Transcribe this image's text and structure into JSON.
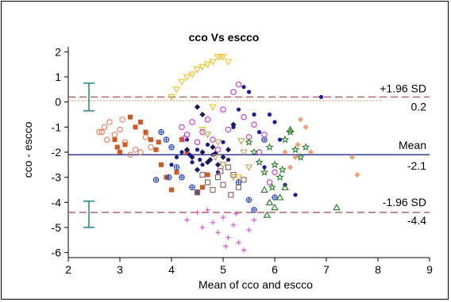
{
  "chart_data": {
    "type": "scatter",
    "title": "cco Vs escco",
    "xlabel": "Mean of cco and escco",
    "ylabel": "cco - escco",
    "xlim": [
      2,
      9
    ],
    "ylim": [
      -6.2,
      2.2
    ],
    "xticks": [
      "2",
      "3",
      "4",
      "5",
      "6",
      "7",
      "8",
      "9"
    ],
    "yticks": [
      "2",
      "1",
      "0",
      "-1",
      "-2",
      "-3",
      "-4",
      "-5",
      "-6"
    ],
    "xtick_values": [
      2,
      3,
      4,
      5,
      6,
      7,
      8,
      9
    ],
    "ytick_values": [
      2,
      1,
      0,
      -1,
      -2,
      -3,
      -4,
      -5,
      -6
    ],
    "grid": false,
    "mean_line": {
      "value": -2.1,
      "label": "Mean",
      "value_label": "-2.1",
      "color": "#1f2a8c"
    },
    "upper_loa": {
      "value": 0.2,
      "label": "+1.96 SD",
      "value_label": "0.2",
      "color": "#a0404a"
    },
    "lower_loa": {
      "value": -4.4,
      "label": "-1.96 SD",
      "value_label": "-4.4",
      "color": "#a0404a"
    },
    "zero_line": {
      "value": 0.05,
      "color": "#e8a060"
    },
    "ci_bars": [
      {
        "x": 2.4,
        "low": -0.35,
        "high": 0.75,
        "color": "#2a8a8a"
      },
      {
        "x": 2.4,
        "low": -5.0,
        "high": -3.95,
        "color": "#2a8a8a"
      }
    ],
    "series": [
      {
        "marker": "circle-open",
        "color": "#f07a55",
        "points": [
          [
            2.6,
            -1.2
          ],
          [
            2.7,
            -1.0
          ],
          [
            2.8,
            -0.8
          ],
          [
            2.75,
            -1.5
          ],
          [
            2.9,
            -1.3
          ],
          [
            3.0,
            -1.1
          ],
          [
            3.1,
            -1.6
          ],
          [
            3.2,
            -2.1
          ],
          [
            3.3,
            -1.9
          ],
          [
            3.5,
            -1.4
          ],
          [
            3.4,
            -2.0
          ],
          [
            3.6,
            -1.8
          ],
          [
            2.65,
            -1.2
          ],
          [
            3.05,
            -0.7
          ]
        ]
      },
      {
        "marker": "square",
        "color": "#d2561e",
        "points": [
          [
            2.9,
            -1.5
          ],
          [
            2.95,
            -1.8
          ],
          [
            3.0,
            -2.0
          ],
          [
            3.1,
            -1.7
          ],
          [
            3.2,
            -0.6
          ],
          [
            3.3,
            -1.0
          ],
          [
            3.4,
            -0.8
          ],
          [
            3.5,
            -1.2
          ],
          [
            3.6,
            -1.5
          ],
          [
            3.7,
            -1.9
          ],
          [
            3.8,
            -2.5
          ],
          [
            3.9,
            -3.0
          ],
          [
            4.0,
            -3.5
          ],
          [
            4.1,
            -2.8
          ],
          [
            4.2,
            -1.5
          ],
          [
            4.3,
            -2.0
          ],
          [
            4.5,
            -3.6
          ],
          [
            4.6,
            -3.4
          ],
          [
            4.7,
            -2.9
          ],
          [
            3.75,
            -1.6
          ]
        ]
      },
      {
        "marker": "triangle-down-open",
        "color": "#f0c020",
        "points": [
          [
            4.0,
            0.2
          ],
          [
            4.1,
            0.5
          ],
          [
            4.2,
            0.8
          ],
          [
            4.3,
            1.0
          ],
          [
            4.4,
            1.1
          ],
          [
            4.5,
            1.3
          ],
          [
            4.6,
            1.4
          ],
          [
            4.7,
            1.5
          ],
          [
            4.8,
            1.6
          ],
          [
            4.9,
            1.8
          ],
          [
            5.0,
            1.8
          ],
          [
            5.1,
            1.6
          ],
          [
            4.8,
            -0.2
          ],
          [
            4.6,
            -1.1
          ],
          [
            5.3,
            -3.0
          ],
          [
            4.95,
            1.8
          ]
        ]
      },
      {
        "marker": "circle-filled",
        "color": "#1a1aa0",
        "points": [
          [
            4.1,
            -2.2
          ],
          [
            4.2,
            -2.0
          ],
          [
            4.3,
            -1.5
          ],
          [
            4.4,
            -2.4
          ],
          [
            4.5,
            -1.9
          ],
          [
            4.6,
            -2.5
          ],
          [
            4.7,
            -1.7
          ],
          [
            4.8,
            -2.1
          ],
          [
            4.9,
            -2.8
          ],
          [
            5.0,
            -1.6
          ],
          [
            5.1,
            -2.3
          ],
          [
            5.2,
            -1.0
          ],
          [
            5.3,
            -0.3
          ],
          [
            5.4,
            0.6
          ],
          [
            5.5,
            0.4
          ],
          [
            5.6,
            -0.5
          ],
          [
            5.7,
            -1.2
          ],
          [
            5.8,
            -2.6
          ],
          [
            5.9,
            -0.5
          ],
          [
            6.0,
            -0.8
          ],
          [
            6.1,
            -1.5
          ],
          [
            6.2,
            -3.3
          ],
          [
            6.4,
            -3.7
          ],
          [
            6.9,
            0.2
          ],
          [
            4.0,
            -2.5
          ],
          [
            4.35,
            -2.1
          ],
          [
            4.55,
            -2.3
          ]
        ]
      },
      {
        "marker": "circle-cross",
        "color": "#2244cc",
        "points": [
          [
            3.8,
            -1.2
          ],
          [
            3.9,
            -1.5
          ],
          [
            4.0,
            -1.8
          ],
          [
            4.1,
            -2.6
          ],
          [
            4.2,
            -3.0
          ],
          [
            3.7,
            -3.1
          ],
          [
            3.95,
            -3.0
          ],
          [
            4.4,
            -3.4
          ],
          [
            4.5,
            -3.6
          ],
          [
            5.6,
            -4.3
          ],
          [
            5.3,
            -3.2
          ],
          [
            6.0,
            -3.8
          ],
          [
            5.8,
            -1.5
          ],
          [
            5.5,
            -3.9
          ]
        ]
      },
      {
        "marker": "diamond-filled",
        "color": "#1a1a5a",
        "points": [
          [
            4.3,
            -1.9
          ],
          [
            4.4,
            -2.2
          ],
          [
            4.5,
            -2.7
          ],
          [
            4.6,
            -2.0
          ],
          [
            4.7,
            -2.4
          ],
          [
            4.8,
            -1.8
          ],
          [
            4.9,
            -2.5
          ],
          [
            5.0,
            -2.2
          ],
          [
            5.1,
            -1.9
          ],
          [
            4.5,
            -0.2
          ],
          [
            4.6,
            -0.5
          ],
          [
            5.2,
            -0.9
          ],
          [
            4.75,
            -2.3
          ],
          [
            4.85,
            -2.05
          ]
        ]
      },
      {
        "marker": "circle-open",
        "color": "#d030d0",
        "points": [
          [
            4.2,
            -1.0
          ],
          [
            4.3,
            -1.3
          ],
          [
            4.4,
            -0.8
          ],
          [
            4.5,
            -1.6
          ],
          [
            4.6,
            -1.2
          ],
          [
            4.7,
            -0.7
          ],
          [
            4.8,
            -1.5
          ],
          [
            4.9,
            -1.9
          ],
          [
            5.0,
            -0.3
          ],
          [
            5.1,
            -1.1
          ],
          [
            5.2,
            0.4
          ],
          [
            5.3,
            0.7
          ],
          [
            5.4,
            -0.6
          ],
          [
            5.5,
            -1.4
          ],
          [
            5.6,
            -0.9
          ],
          [
            5.7,
            -2.0
          ],
          [
            5.8,
            -1.3
          ],
          [
            5.9,
            -3.2
          ],
          [
            6.0,
            -2.8
          ],
          [
            4.25,
            -1.45
          ]
        ]
      },
      {
        "marker": "square-open",
        "color": "#8a5a5a",
        "points": [
          [
            4.6,
            -2.9
          ],
          [
            4.7,
            -3.2
          ],
          [
            4.8,
            -3.5
          ],
          [
            4.9,
            -3.0
          ],
          [
            5.0,
            -3.3
          ],
          [
            5.1,
            -2.6
          ],
          [
            5.2,
            -2.9
          ],
          [
            5.3,
            -3.4
          ],
          [
            5.4,
            -3.1
          ],
          [
            4.5,
            -3.6
          ],
          [
            5.15,
            -3.7
          ],
          [
            4.95,
            -2.75
          ]
        ]
      },
      {
        "marker": "star-open",
        "color": "#1a7a1a",
        "points": [
          [
            5.5,
            -1.6
          ],
          [
            5.6,
            -2.0
          ],
          [
            5.7,
            -2.4
          ],
          [
            5.8,
            -2.8
          ],
          [
            5.9,
            -1.8
          ],
          [
            6.0,
            -2.5
          ],
          [
            6.1,
            -3.0
          ],
          [
            6.2,
            -1.5
          ],
          [
            6.3,
            -1.2
          ],
          [
            6.4,
            -1.9
          ],
          [
            6.5,
            -2.2
          ],
          [
            6.6,
            -1.8
          ],
          [
            5.95,
            -3.4
          ],
          [
            6.15,
            -2.7
          ]
        ]
      },
      {
        "marker": "triangle-up-open",
        "color": "#1a7a1a",
        "points": [
          [
            5.8,
            -3.5
          ],
          [
            5.9,
            -4.0
          ],
          [
            6.0,
            -4.2
          ],
          [
            6.1,
            -3.8
          ],
          [
            6.2,
            -3.4
          ],
          [
            6.3,
            -1.1
          ],
          [
            7.2,
            -4.2
          ],
          [
            5.85,
            -4.5
          ]
        ]
      },
      {
        "marker": "diamond-filled",
        "color": "#f0a070",
        "points": [
          [
            6.2,
            -2.0
          ],
          [
            6.3,
            -2.6
          ],
          [
            6.4,
            -2.2
          ],
          [
            6.5,
            -0.7
          ],
          [
            6.6,
            -1.0
          ],
          [
            6.7,
            -2.0
          ],
          [
            7.5,
            -2.2
          ],
          [
            7.6,
            -2.9
          ],
          [
            6.45,
            -1.7
          ]
        ]
      },
      {
        "marker": "plus",
        "color": "#e050e0",
        "points": [
          [
            4.3,
            -4.7
          ],
          [
            4.5,
            -4.4
          ],
          [
            4.6,
            -5.0
          ],
          [
            4.7,
            -4.3
          ],
          [
            4.8,
            -4.8
          ],
          [
            4.9,
            -5.2
          ],
          [
            5.0,
            -4.6
          ],
          [
            5.1,
            -5.4
          ],
          [
            5.2,
            -4.9
          ],
          [
            5.3,
            -5.6
          ],
          [
            5.4,
            -5.9
          ],
          [
            5.5,
            -5.1
          ],
          [
            5.6,
            -4.7
          ],
          [
            5.05,
            -5.75
          ],
          [
            5.25,
            -4.45
          ]
        ]
      },
      {
        "marker": "triangle-down-open",
        "color": "#c0a050",
        "points": [
          [
            4.7,
            -1.3
          ],
          [
            4.9,
            -1.6
          ],
          [
            5.0,
            -2.5
          ],
          [
            5.2,
            -3.0
          ],
          [
            5.4,
            -2.0
          ],
          [
            5.5,
            -2.6
          ],
          [
            4.85,
            -2.2
          ],
          [
            5.35,
            -1.55
          ]
        ]
      }
    ]
  }
}
